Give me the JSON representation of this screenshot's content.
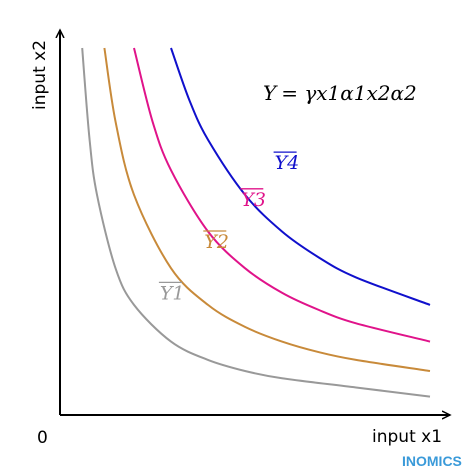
{
  "chart_data": {
    "type": "line",
    "title": "",
    "xlabel": "input x1",
    "ylabel": "input x2",
    "origin_label": "0",
    "xlim": [
      0,
      10
    ],
    "ylim": [
      0,
      10
    ],
    "grid": false,
    "legend": "none",
    "equation": {
      "lhs": "Y",
      "rhs": "= γx1α1x2α2"
    },
    "series": [
      {
        "name": "Y1",
        "color": "#999999",
        "x": [
          0.6,
          0.8,
          1.0,
          1.5,
          2.0,
          3.0,
          4.0,
          5.0,
          6.0,
          8.0,
          10.0
        ],
        "y": [
          10.0,
          7.5,
          6.0,
          4.0,
          3.0,
          2.0,
          1.5,
          1.2,
          1.0,
          0.75,
          0.5
        ]
      },
      {
        "name": "Y2",
        "color": "#c88a3a",
        "x": [
          1.2,
          1.5,
          2.0,
          3.0,
          4.0,
          5.0,
          6.0,
          7.0,
          8.0,
          10.0
        ],
        "y": [
          10.0,
          8.0,
          6.0,
          4.0,
          3.0,
          2.4,
          2.0,
          1.71,
          1.5,
          1.2
        ]
      },
      {
        "name": "Y3",
        "color": "#e0138a",
        "x": [
          2.0,
          2.5,
          3.0,
          4.0,
          5.0,
          6.0,
          7.0,
          8.0,
          10.0
        ],
        "y": [
          10.0,
          8.0,
          6.67,
          5.0,
          4.0,
          3.33,
          2.86,
          2.5,
          2.0
        ]
      },
      {
        "name": "Y4",
        "color": "#1010cc",
        "x": [
          3.0,
          3.5,
          4.0,
          5.0,
          6.0,
          7.0,
          8.0,
          10.0
        ],
        "y": [
          10.0,
          8.57,
          7.5,
          6.0,
          5.0,
          4.29,
          3.75,
          3.0
        ]
      }
    ],
    "curve_labels": [
      {
        "series": "Y1",
        "x": 2.7,
        "y": 3.15
      },
      {
        "series": "Y2",
        "x": 3.9,
        "y": 4.55
      },
      {
        "series": "Y3",
        "x": 4.9,
        "y": 5.7
      },
      {
        "series": "Y4",
        "x": 5.8,
        "y": 6.7
      }
    ]
  },
  "branding": {
    "logo_text": "INOMICS",
    "color": "#3a9ad9"
  }
}
